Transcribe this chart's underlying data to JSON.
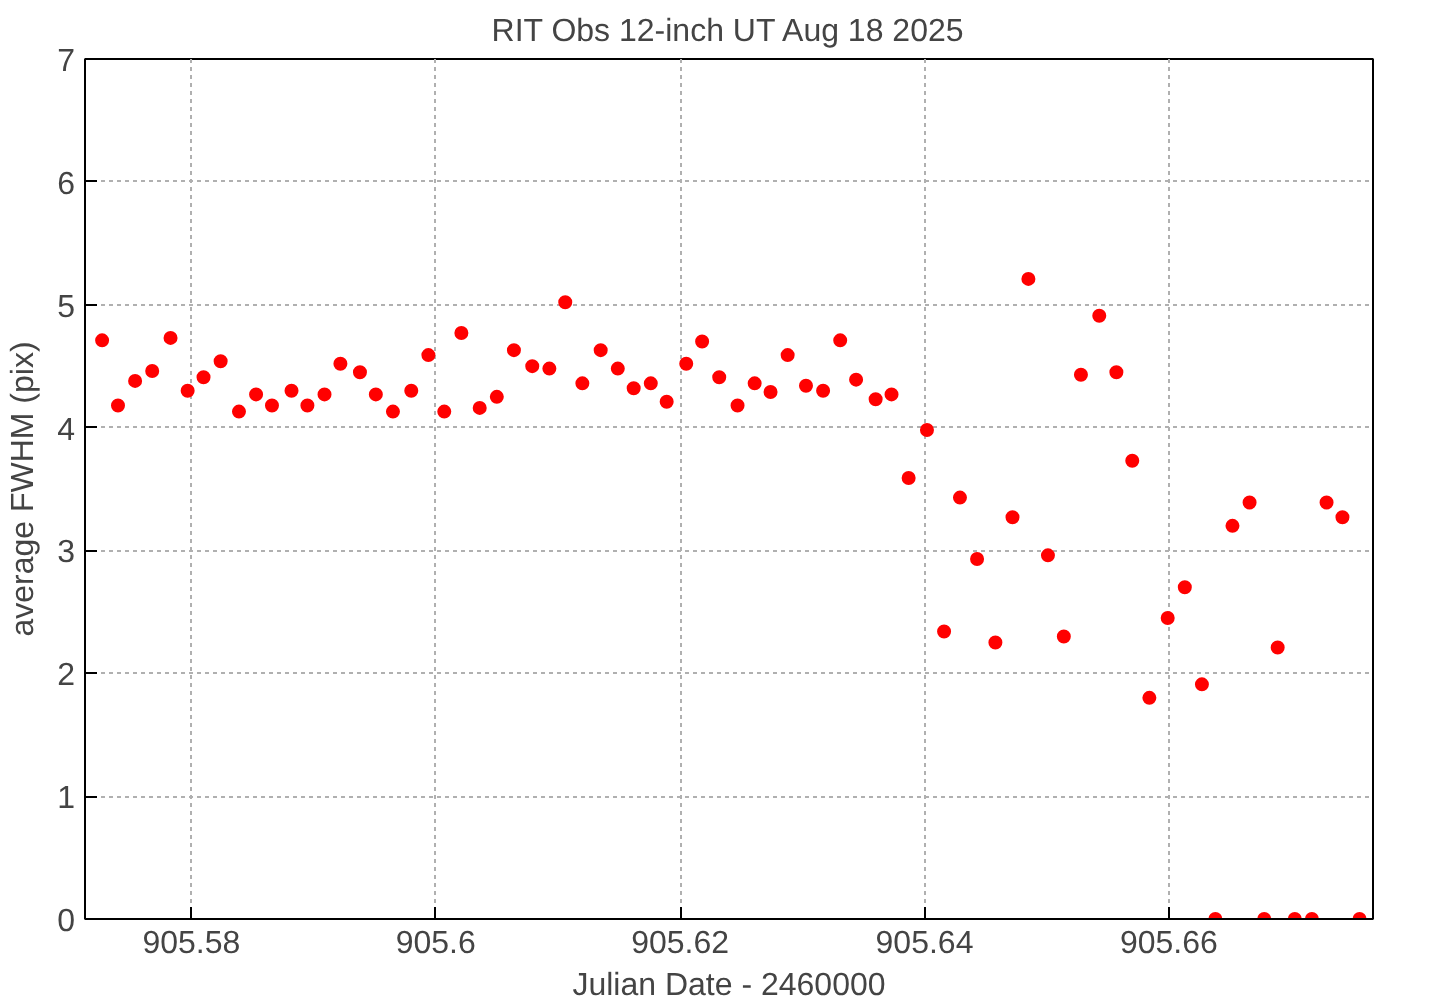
{
  "chart_data": {
    "type": "scatter",
    "title": "RIT Obs 12-inch UT Aug 18 2025",
    "xlabel": "Julian Date - 2460000",
    "ylabel": "average FWHM (pix)",
    "xlim": [
      905.5713,
      905.6767
    ],
    "xticks": [
      905.58,
      905.6,
      905.62,
      905.64,
      905.66
    ],
    "ylim": [
      0,
      7
    ],
    "yticks": [
      0,
      1,
      2,
      3,
      4,
      5,
      6,
      7
    ],
    "grid": true,
    "marker": "circle",
    "series": [
      {
        "color": "#ff0000",
        "x": [
          905.5727,
          905.574,
          905.5754,
          905.5768,
          905.5783,
          905.5797,
          905.581,
          905.5824,
          905.5839,
          905.5853,
          905.5866,
          905.5882,
          905.5895,
          905.5909,
          905.5922,
          905.5938,
          905.5951,
          905.5965,
          905.598,
          905.5994,
          905.6007,
          905.6021,
          905.6036,
          905.605,
          905.6064,
          905.6079,
          905.6093,
          905.6106,
          905.612,
          905.6135,
          905.6149,
          905.6162,
          905.6176,
          905.6189,
          905.6205,
          905.6218,
          905.6232,
          905.6247,
          905.6261,
          905.6274,
          905.6288,
          905.6303,
          905.6317,
          905.6331,
          905.6344,
          905.636,
          905.6373,
          905.6387,
          905.6402,
          905.6416,
          905.6429,
          905.6443,
          905.6458,
          905.6472,
          905.6485,
          905.6501,
          905.6514,
          905.6528,
          905.6543,
          905.6557,
          905.657,
          905.6584,
          905.6599,
          905.6613,
          905.6627,
          905.6638,
          905.6652,
          905.6666,
          905.6678,
          905.6689,
          905.6703,
          905.6717,
          905.6729,
          905.6742,
          905.6756
        ],
        "values": [
          4.71,
          4.18,
          4.38,
          4.46,
          4.73,
          4.3,
          4.41,
          4.54,
          4.13,
          4.27,
          4.18,
          4.3,
          4.18,
          4.27,
          4.52,
          4.45,
          4.27,
          4.13,
          4.3,
          4.59,
          4.13,
          4.77,
          4.16,
          4.25,
          4.63,
          4.5,
          4.48,
          5.02,
          4.36,
          4.63,
          4.48,
          4.32,
          4.36,
          4.21,
          4.52,
          4.7,
          4.41,
          4.18,
          4.36,
          4.29,
          4.59,
          4.34,
          4.3,
          4.71,
          4.39,
          4.23,
          4.27,
          3.59,
          3.98,
          2.34,
          3.43,
          2.93,
          2.25,
          3.27,
          5.21,
          2.96,
          2.3,
          4.43,
          4.91,
          4.45,
          3.73,
          1.8,
          2.45,
          2.7,
          1.91,
          0,
          3.2,
          3.39,
          0,
          2.21,
          0,
          0,
          3.39,
          3.27,
          0
        ]
      }
    ]
  }
}
